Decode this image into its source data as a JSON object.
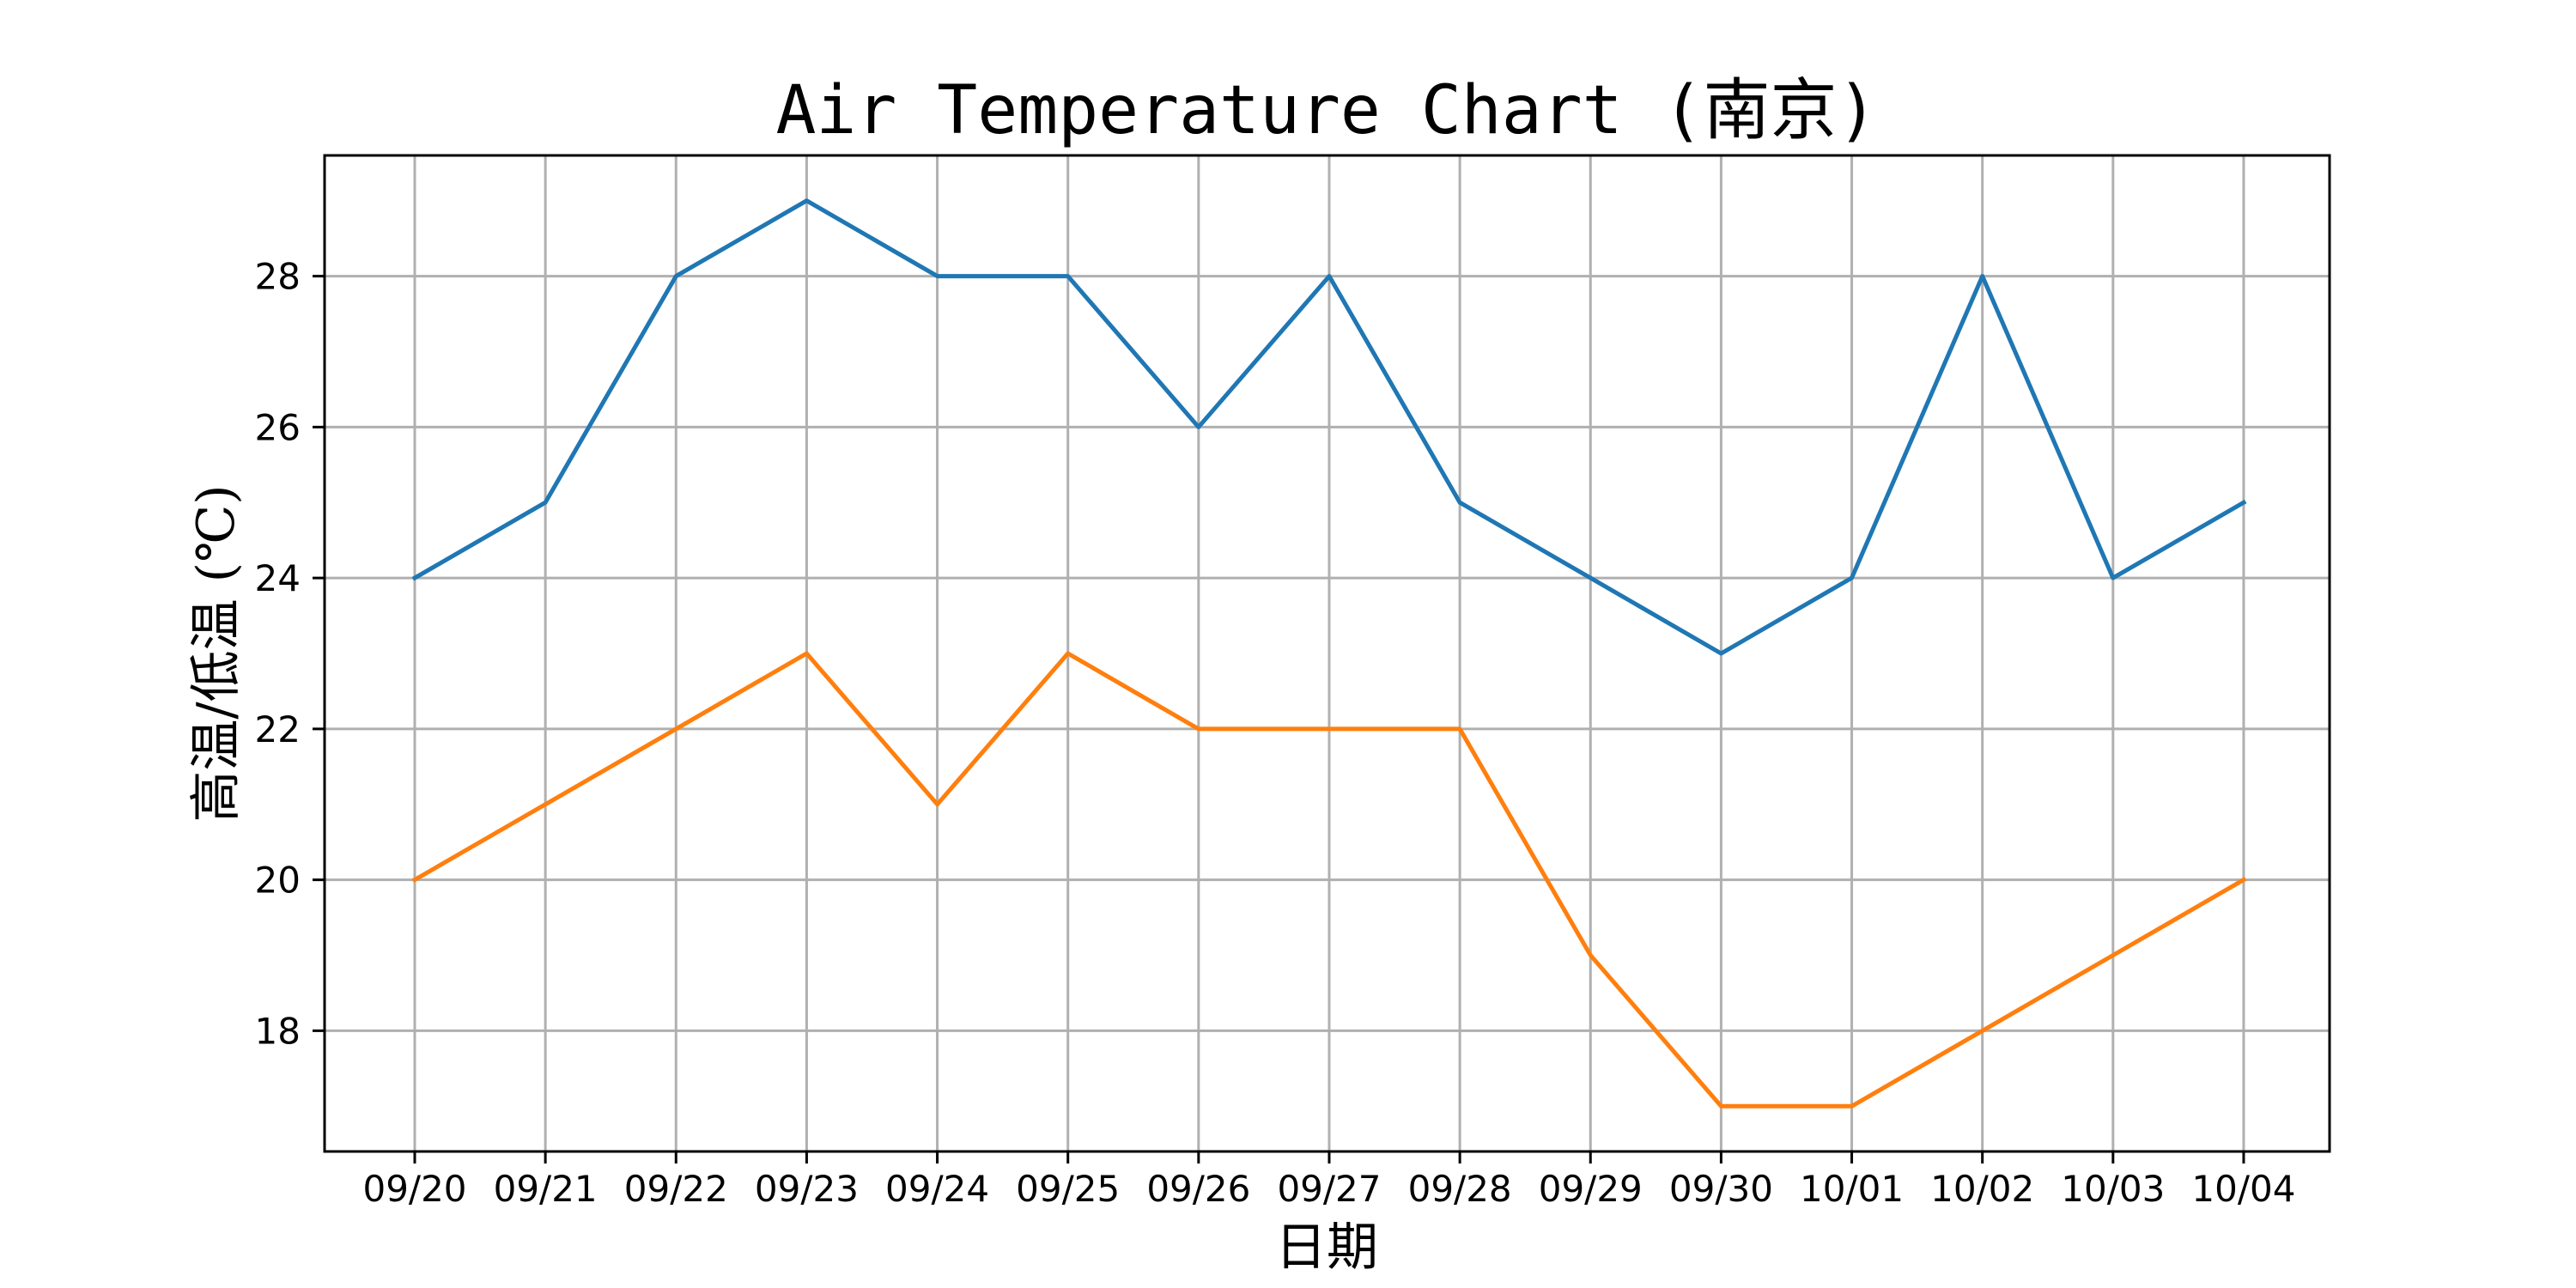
{
  "chart_data": {
    "type": "line",
    "title": "Air Temperature Chart (南京)",
    "xlabel": "日期",
    "ylabel": "高温/低温 (℃)",
    "categories": [
      "09/20",
      "09/21",
      "09/22",
      "09/23",
      "09/24",
      "09/25",
      "09/26",
      "09/27",
      "09/28",
      "09/29",
      "09/30",
      "10/01",
      "10/02",
      "10/03",
      "10/04"
    ],
    "series": [
      {
        "color": "#1f77b4",
        "values": [
          24,
          25,
          28,
          29,
          28,
          28,
          26,
          28,
          25,
          24,
          23,
          24,
          28,
          24,
          25
        ]
      },
      {
        "color": "#ff7f0e",
        "values": [
          20,
          21,
          22,
          23,
          21,
          23,
          22,
          22,
          22,
          19,
          17,
          17,
          18,
          19,
          20
        ]
      }
    ],
    "ylim": [
      16.4,
      29.6
    ],
    "yticks": [
      18,
      20,
      22,
      24,
      26,
      28
    ],
    "grid": true,
    "legend": "none"
  }
}
